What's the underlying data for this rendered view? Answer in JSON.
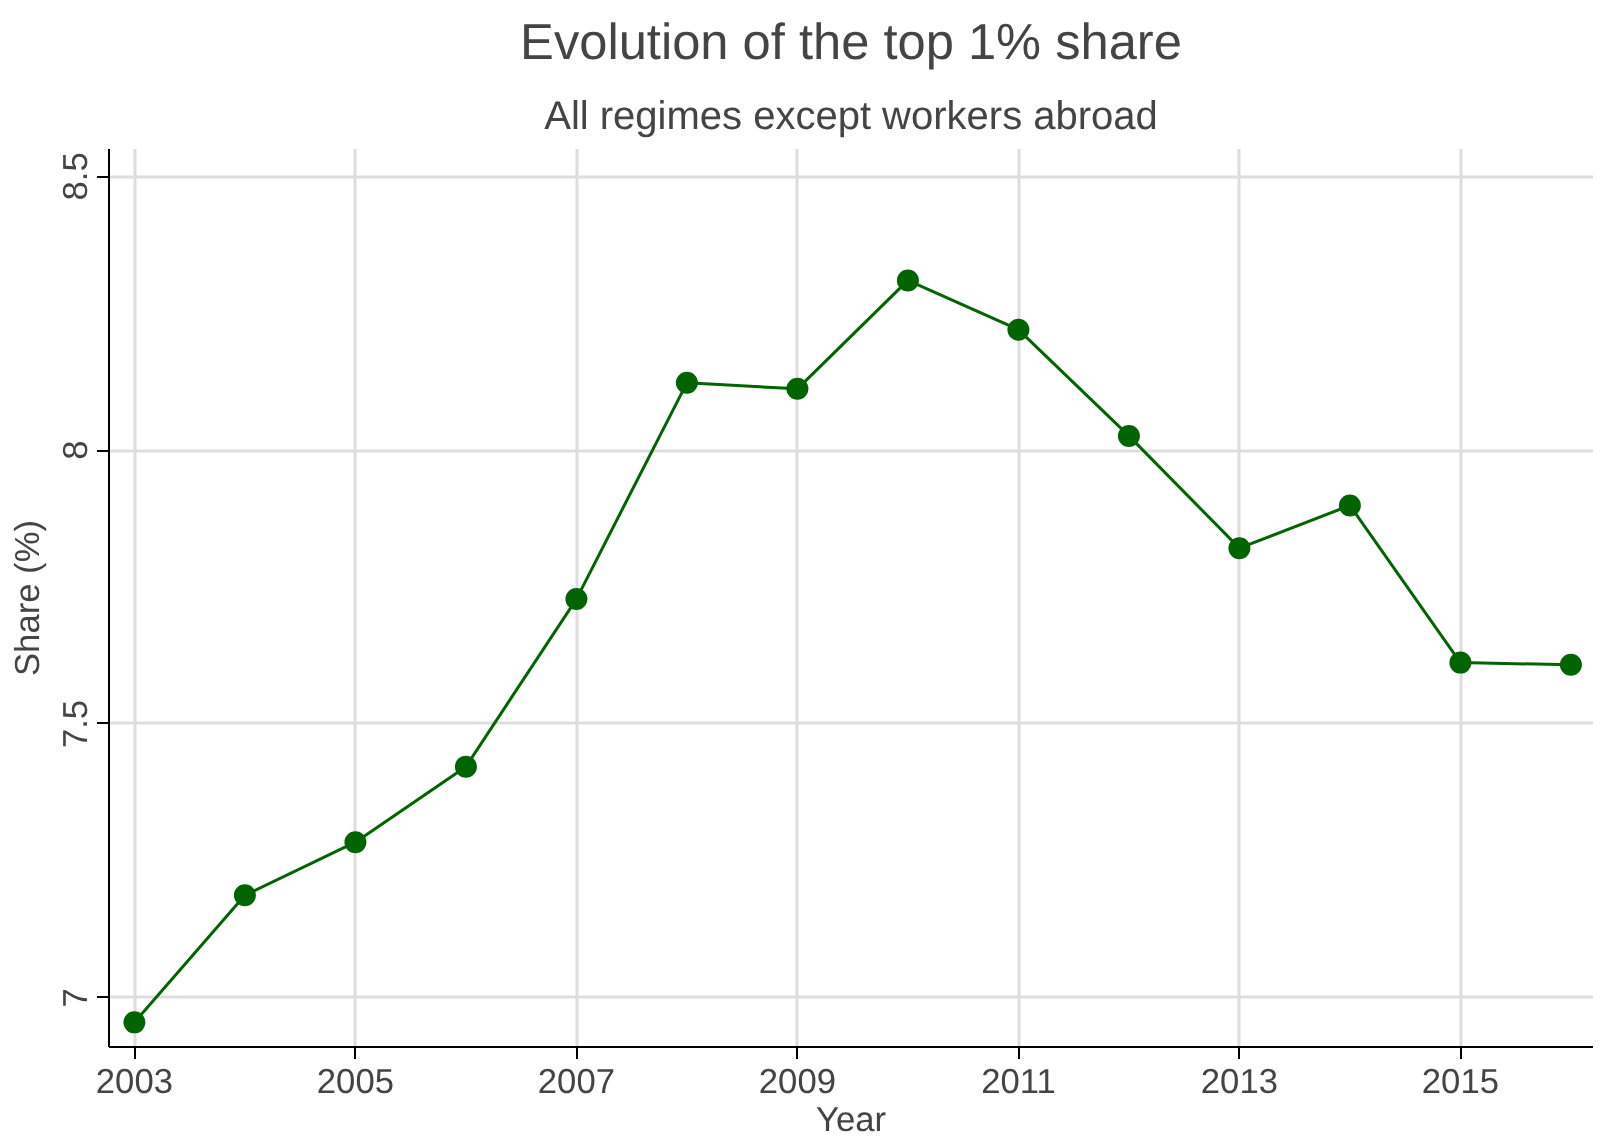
{
  "chart_data": {
    "type": "line",
    "title": "Evolution of the top 1% share",
    "subtitle": "All regimes except workers abroad",
    "xlabel": "Year",
    "ylabel": "Share (%)",
    "x": [
      2003,
      2004,
      2005,
      2006,
      2007,
      2008,
      2009,
      2010,
      2011,
      2012,
      2013,
      2014,
      2015,
      2016
    ],
    "series": [
      {
        "color": "#006400",
        "values": [
          6.955,
          7.187,
          7.284,
          7.422,
          7.728,
          8.123,
          8.112,
          8.31,
          8.22,
          8.026,
          7.821,
          7.899,
          7.612,
          7.608
        ]
      }
    ],
    "xlim": [
      2002.77,
      2016.2
    ],
    "ylim": [
      6.91,
      8.55
    ],
    "xticks": [
      2003,
      2005,
      2007,
      2009,
      2011,
      2013,
      2015
    ],
    "yticks": [
      7,
      7.5,
      8,
      8.5
    ],
    "grid": true,
    "marker": "circle",
    "line_style": "solid"
  }
}
